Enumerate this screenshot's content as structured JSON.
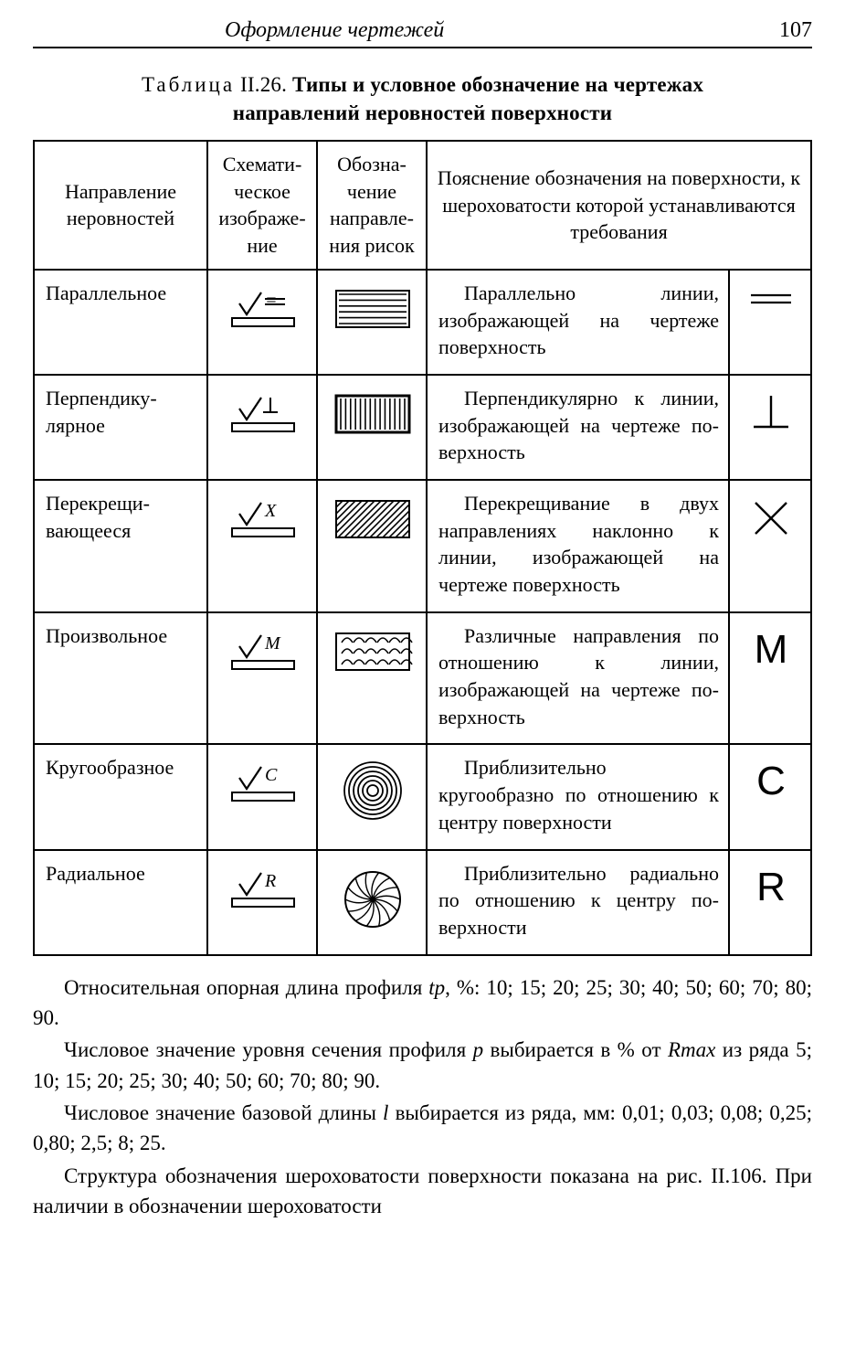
{
  "header": {
    "running_title": "Оформление чертежей",
    "page_number": "107"
  },
  "caption": {
    "prefix": "Таблица",
    "number": "II.26.",
    "bold_line1": "Типы и условное обозначение на чертежах",
    "bold_line2": "направлений неровностей поверхности"
  },
  "columns": {
    "c1": "Направление неровностей",
    "c2": "Схемати­ческое изображе­ние",
    "c3": "Обозна­чение направле­ния рисок",
    "c45": "Пояснение обозначения на поверх­ности, к шероховатости которой устанавливаются требования"
  },
  "rows": [
    {
      "name": "Параллельное",
      "suffix": "=",
      "schematic_type": "horizontal",
      "desc": "Параллельно ли­нии, изображающей на чертеже поверх­ность",
      "glyph_type": "equals"
    },
    {
      "name": "Перпендику­лярное",
      "suffix": "⊥",
      "schematic_type": "vertical",
      "desc": "Перпендикулярно к линии, изображаю­щей на чертеже по­верхность",
      "glyph_type": "perp"
    },
    {
      "name": "Перекрещи­вающееся",
      "suffix": "X",
      "schematic_type": "crosshatch",
      "desc": "Перекрещивание в двух направлениях наклонно к линии, изображающей на чертеже поверхность",
      "glyph_type": "x"
    },
    {
      "name": "Произвольное",
      "suffix": "M",
      "schematic_type": "arcs",
      "desc": "Различные направ­ления по отношению к линии, изображаю­щей на чертеже по­верхность",
      "glyph_type": "m"
    },
    {
      "name": "Кругообразное",
      "suffix": "C",
      "schematic_type": "circles",
      "desc": "Приблизительно кругообразно по от­ношению к центру поверхности",
      "glyph_type": "c"
    },
    {
      "name": "Радиальное",
      "suffix": "R",
      "schematic_type": "radial",
      "desc": "Приблизительно радиально по отно­шению к центру по­верхности",
      "glyph_type": "r"
    }
  ],
  "body": {
    "p1_a": "Относительная опорная длина профиля ",
    "p1_it": "tp",
    "p1_b": ", %: 10; 15; 20; 25; 30; 40; 50; 60; 70; 80; 90.",
    "p2_a": "Числовое значение уровня сечения профиля ",
    "p2_it": "p",
    "p2_b": " выбирается в % от ",
    "p2_it2": "Rmax",
    "p2_c": " из ряда 5; 10; 15; 20; 25; 30; 40; 50; 60; 70; 80; 90.",
    "p3_a": "Числовое значение базовой длины ",
    "p3_it": "l",
    "p3_b": " выбирается из ряда, мм: 0,01; 0,03; 0,08; 0,25; 0,80; 2,5; 8; 25.",
    "p4": "Структура обозначения шероховатости поверхности пока­зана на рис. II.106. При наличии в обозначении шероховатости"
  },
  "styles": {
    "stroke": "#000000",
    "fill_none": "none",
    "fontsizes": {
      "body": 23,
      "table": 22,
      "glyph": 44,
      "header": 24
    }
  }
}
